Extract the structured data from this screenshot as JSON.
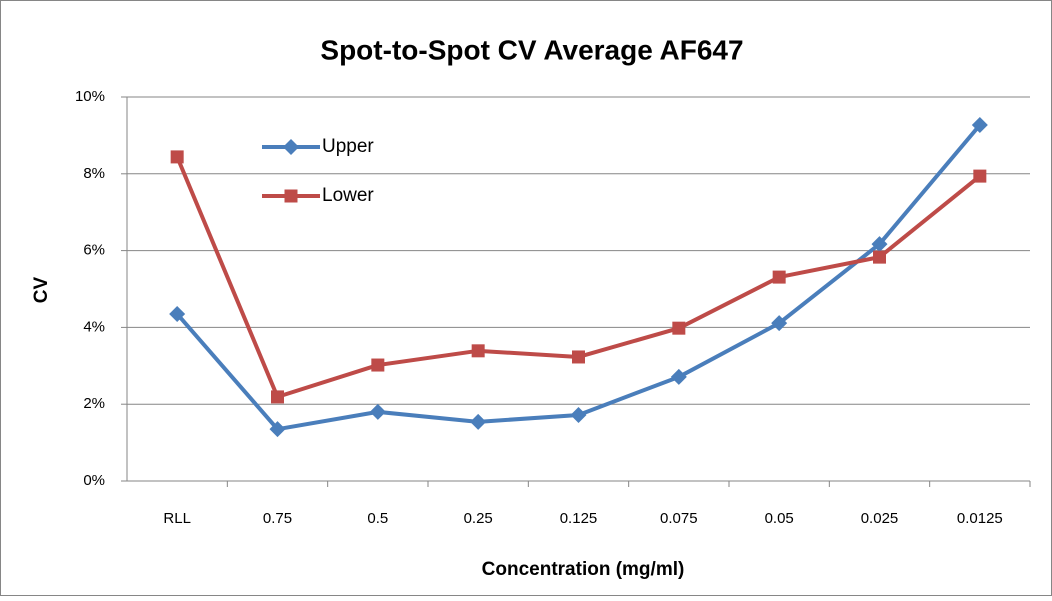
{
  "chart_data": {
    "type": "line",
    "title": "Spot-to-Spot CV Average AF647",
    "x_label": "Concentration (mg/ml)",
    "y_label": "CV",
    "categories": [
      "RLL",
      "0.75",
      "0.5",
      "0.25",
      "0.125",
      "0.075",
      "0.05",
      "0.025",
      "0.0125"
    ],
    "series": [
      {
        "name": "Upper",
        "color": "#4a7ebb",
        "marker": "diamond",
        "values": [
          4.35,
          1.35,
          1.8,
          1.54,
          1.72,
          2.71,
          4.11,
          6.17,
          9.27
        ]
      },
      {
        "name": "Lower",
        "color": "#be4b48",
        "marker": "square",
        "values": [
          8.44,
          2.19,
          3.02,
          3.39,
          3.23,
          3.98,
          5.31,
          5.83,
          7.94
        ]
      }
    ],
    "ylim": [
      0,
      10
    ],
    "yticks": [
      {
        "value": 0,
        "label": "0%"
      },
      {
        "value": 2,
        "label": "2%"
      },
      {
        "value": 4,
        "label": "4%"
      },
      {
        "value": 6,
        "label": "6%"
      },
      {
        "value": 8,
        "label": "8%"
      },
      {
        "value": 10,
        "label": "10%"
      }
    ],
    "grid": true,
    "legend": "upper left"
  }
}
